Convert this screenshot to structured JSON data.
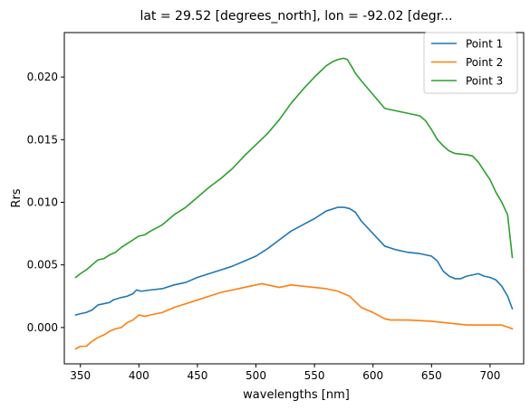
{
  "chart_data": {
    "type": "line",
    "title": "lat = 29.52 [degrees_north], lon = -92.02 [degr...",
    "xlabel": "wavelengths [nm]",
    "ylabel": "Rrs",
    "xlim": [
      336.3,
      728.7
    ],
    "ylim": [
      -0.0029,
      0.02355
    ],
    "xticks": [
      350,
      400,
      450,
      500,
      550,
      600,
      650,
      700
    ],
    "xtick_labels": [
      "350",
      "400",
      "450",
      "500",
      "550",
      "600",
      "650",
      "700"
    ],
    "yticks": [
      0.0,
      0.005,
      0.01,
      0.015,
      0.02
    ],
    "ytick_labels": [
      "0.000",
      "0.005",
      "0.010",
      "0.015",
      "0.020"
    ],
    "legend_position": "top-right",
    "grid": false,
    "series": [
      {
        "name": "Point 1",
        "color": "#1f77b4",
        "points": [
          [
            346,
            0.001
          ],
          [
            350,
            0.0011
          ],
          [
            355,
            0.0012
          ],
          [
            360,
            0.0014
          ],
          [
            365,
            0.0018
          ],
          [
            370,
            0.0019
          ],
          [
            375,
            0.002
          ],
          [
            378,
            0.0022
          ],
          [
            385,
            0.0024
          ],
          [
            390,
            0.0025
          ],
          [
            395,
            0.0027
          ],
          [
            398,
            0.003
          ],
          [
            402,
            0.0029
          ],
          [
            410,
            0.003
          ],
          [
            420,
            0.0031
          ],
          [
            430,
            0.0034
          ],
          [
            440,
            0.0036
          ],
          [
            450,
            0.004
          ],
          [
            460,
            0.0043
          ],
          [
            470,
            0.0046
          ],
          [
            480,
            0.0049
          ],
          [
            490,
            0.0053
          ],
          [
            500,
            0.0057
          ],
          [
            510,
            0.0063
          ],
          [
            520,
            0.007
          ],
          [
            530,
            0.0077
          ],
          [
            540,
            0.0082
          ],
          [
            550,
            0.0087
          ],
          [
            560,
            0.0093
          ],
          [
            570,
            0.0096
          ],
          [
            575,
            0.0096
          ],
          [
            580,
            0.0095
          ],
          [
            585,
            0.0092
          ],
          [
            590,
            0.0085
          ],
          [
            600,
            0.0075
          ],
          [
            610,
            0.0065
          ],
          [
            620,
            0.0062
          ],
          [
            630,
            0.006
          ],
          [
            640,
            0.0059
          ],
          [
            650,
            0.0057
          ],
          [
            655,
            0.0053
          ],
          [
            660,
            0.0045
          ],
          [
            665,
            0.0041
          ],
          [
            670,
            0.0039
          ],
          [
            675,
            0.0039
          ],
          [
            680,
            0.0041
          ],
          [
            685,
            0.0042
          ],
          [
            690,
            0.0043
          ],
          [
            695,
            0.0041
          ],
          [
            700,
            0.004
          ],
          [
            705,
            0.0038
          ],
          [
            710,
            0.0033
          ],
          [
            715,
            0.0025
          ],
          [
            719,
            0.0015
          ]
        ]
      },
      {
        "name": "Point 2",
        "color": "#ff7f0e",
        "points": [
          [
            346,
            -0.0017
          ],
          [
            350,
            -0.0015
          ],
          [
            355,
            -0.0015
          ],
          [
            360,
            -0.0011
          ],
          [
            365,
            -0.0008
          ],
          [
            370,
            -0.0006
          ],
          [
            375,
            -0.0003
          ],
          [
            380,
            -0.0001
          ],
          [
            385,
            0.0
          ],
          [
            390,
            0.0004
          ],
          [
            395,
            0.0006
          ],
          [
            400,
            0.001
          ],
          [
            405,
            0.0009
          ],
          [
            410,
            0.001
          ],
          [
            420,
            0.0012
          ],
          [
            430,
            0.0016
          ],
          [
            440,
            0.0019
          ],
          [
            450,
            0.0022
          ],
          [
            460,
            0.0025
          ],
          [
            470,
            0.0028
          ],
          [
            480,
            0.003
          ],
          [
            490,
            0.0032
          ],
          [
            500,
            0.0034
          ],
          [
            505,
            0.0035
          ],
          [
            510,
            0.0034
          ],
          [
            515,
            0.0033
          ],
          [
            520,
            0.0032
          ],
          [
            530,
            0.0034
          ],
          [
            540,
            0.0033
          ],
          [
            550,
            0.0032
          ],
          [
            560,
            0.0031
          ],
          [
            570,
            0.0029
          ],
          [
            575,
            0.0027
          ],
          [
            580,
            0.0025
          ],
          [
            590,
            0.0016
          ],
          [
            600,
            0.0012
          ],
          [
            610,
            0.0007
          ],
          [
            615,
            0.0006
          ],
          [
            630,
            0.0006
          ],
          [
            650,
            0.0005
          ],
          [
            670,
            0.0003
          ],
          [
            680,
            0.0002
          ],
          [
            700,
            0.0002
          ],
          [
            710,
            0.0002
          ],
          [
            719,
            -0.0001
          ]
        ]
      },
      {
        "name": "Point 3",
        "color": "#2ca02c",
        "points": [
          [
            346,
            0.004
          ],
          [
            350,
            0.0043
          ],
          [
            355,
            0.0046
          ],
          [
            360,
            0.005
          ],
          [
            365,
            0.0054
          ],
          [
            370,
            0.0055
          ],
          [
            375,
            0.0058
          ],
          [
            380,
            0.006
          ],
          [
            385,
            0.0064
          ],
          [
            390,
            0.0067
          ],
          [
            395,
            0.007
          ],
          [
            400,
            0.0073
          ],
          [
            405,
            0.0074
          ],
          [
            410,
            0.0077
          ],
          [
            420,
            0.0082
          ],
          [
            430,
            0.009
          ],
          [
            440,
            0.0096
          ],
          [
            450,
            0.0104
          ],
          [
            460,
            0.0112
          ],
          [
            470,
            0.0119
          ],
          [
            480,
            0.0127
          ],
          [
            490,
            0.0137
          ],
          [
            500,
            0.0146
          ],
          [
            510,
            0.0155
          ],
          [
            520,
            0.0166
          ],
          [
            530,
            0.0179
          ],
          [
            540,
            0.019
          ],
          [
            550,
            0.02
          ],
          [
            560,
            0.0209
          ],
          [
            565,
            0.0212
          ],
          [
            570,
            0.0214
          ],
          [
            575,
            0.0215
          ],
          [
            578,
            0.0214
          ],
          [
            582,
            0.0208
          ],
          [
            585,
            0.0203
          ],
          [
            590,
            0.0197
          ],
          [
            600,
            0.0186
          ],
          [
            610,
            0.0175
          ],
          [
            620,
            0.0173
          ],
          [
            630,
            0.0171
          ],
          [
            640,
            0.0169
          ],
          [
            645,
            0.0165
          ],
          [
            650,
            0.0158
          ],
          [
            655,
            0.015
          ],
          [
            660,
            0.0145
          ],
          [
            665,
            0.0141
          ],
          [
            670,
            0.0139
          ],
          [
            680,
            0.0138
          ],
          [
            685,
            0.0137
          ],
          [
            690,
            0.0132
          ],
          [
            695,
            0.0125
          ],
          [
            700,
            0.0118
          ],
          [
            705,
            0.0108
          ],
          [
            710,
            0.01
          ],
          [
            715,
            0.009
          ],
          [
            719,
            0.0056
          ]
        ]
      }
    ]
  }
}
